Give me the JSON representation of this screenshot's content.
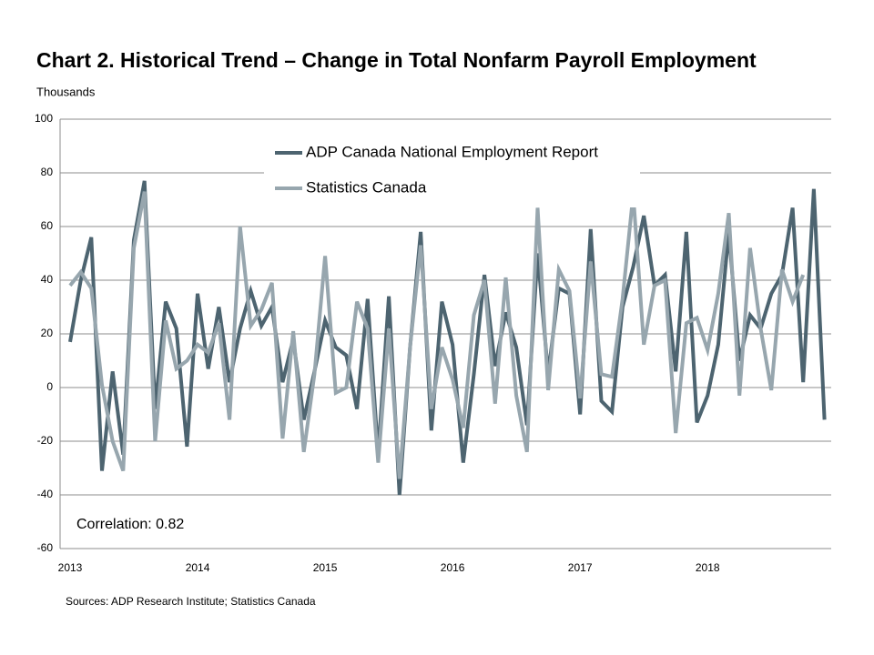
{
  "chart_data": {
    "type": "line",
    "title": "Chart 2. Historical Trend – Change in Total Nonfarm Payroll Employment",
    "ylabel": "Thousands",
    "annotation": "Correlation: 0.82",
    "source": "Sources: ADP Research Institute; Statistics Canada",
    "categories": [
      "2013",
      null,
      null,
      null,
      null,
      null,
      null,
      null,
      null,
      null,
      null,
      null,
      "2014",
      null,
      null,
      null,
      null,
      null,
      null,
      null,
      null,
      null,
      null,
      null,
      "2015",
      null,
      null,
      null,
      null,
      null,
      null,
      null,
      null,
      null,
      null,
      null,
      "2016",
      null,
      null,
      null,
      null,
      null,
      null,
      null,
      null,
      null,
      null,
      null,
      "2017",
      null,
      null,
      null,
      null,
      null,
      null,
      null,
      null,
      null,
      null,
      null,
      "2018",
      null,
      null,
      null,
      null,
      null,
      null,
      null,
      null,
      null,
      null,
      null
    ],
    "series": [
      {
        "name": "ADP Canada National Employment Report",
        "color": "#4d6470",
        "values": [
          17,
          40,
          56,
          -31,
          6,
          -25,
          55,
          77,
          -8,
          32,
          22,
          -22,
          35,
          7,
          30,
          2,
          22,
          36,
          23,
          30,
          2,
          18,
          -12,
          6,
          25,
          15,
          12,
          -8,
          33,
          -25,
          34,
          -40,
          15,
          58,
          -16,
          32,
          16,
          -28,
          5,
          42,
          8,
          28,
          15,
          -14,
          50,
          5,
          37,
          35,
          -10,
          59,
          -5,
          -9,
          30,
          45,
          64,
          38,
          42,
          6,
          58,
          -13,
          -3,
          16,
          58,
          10,
          27,
          22,
          35,
          42,
          67,
          2,
          74,
          -12
        ]
      },
      {
        "name": "Statistics Canada",
        "color": "#97a6ae",
        "values": [
          38,
          43,
          37,
          1,
          -20,
          -31,
          52,
          73,
          -20,
          25,
          7,
          10,
          16,
          13,
          24,
          -12,
          60,
          23,
          29,
          39,
          -19,
          21,
          -24,
          5,
          49,
          -2,
          0,
          32,
          22,
          -28,
          22,
          -34,
          15,
          53,
          -8,
          15,
          3,
          -15,
          27,
          40,
          -6,
          41,
          -3,
          -24,
          67,
          -1,
          44,
          36,
          -4,
          47,
          5,
          4,
          33,
          72,
          16,
          38,
          40,
          -17,
          24,
          26,
          14,
          35,
          65,
          -3,
          52,
          22,
          -1,
          44,
          32,
          42,
          null,
          null
        ]
      }
    ],
    "ylim": [
      -60,
      100
    ],
    "yticks": [
      -60,
      -40,
      -20,
      0,
      20,
      40,
      60,
      80,
      100
    ],
    "grid": true
  }
}
